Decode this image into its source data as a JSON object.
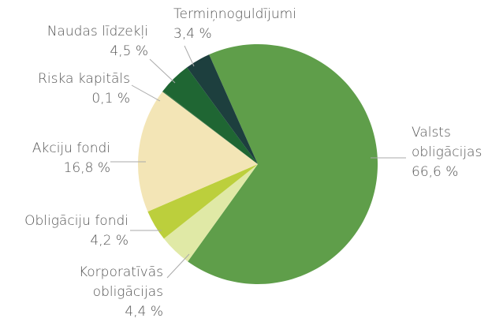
{
  "chart_data": {
    "type": "pie",
    "categories": [
      "Valsts obligācijas",
      "Korporatīvās obligācijas",
      "Obligāciju fondi",
      "Akciju fondi",
      "Riska kapitāls",
      "Naudas līdzekļi",
      "Termiņnoguldījumi"
    ],
    "values": [
      66.6,
      4.4,
      4.2,
      16.8,
      0.1,
      4.5,
      3.4
    ],
    "value_labels": [
      "66,6 %",
      "4,4 %",
      "4,2 %",
      "16,8 %",
      "0,1 %",
      "4,5 %",
      "3,4 %"
    ],
    "colors": [
      "#5f9e4a",
      "#e0e9a6",
      "#bccf3c",
      "#f3e5b6",
      "#2f6e3c",
      "#1f6633",
      "#1d3f3e"
    ]
  }
}
